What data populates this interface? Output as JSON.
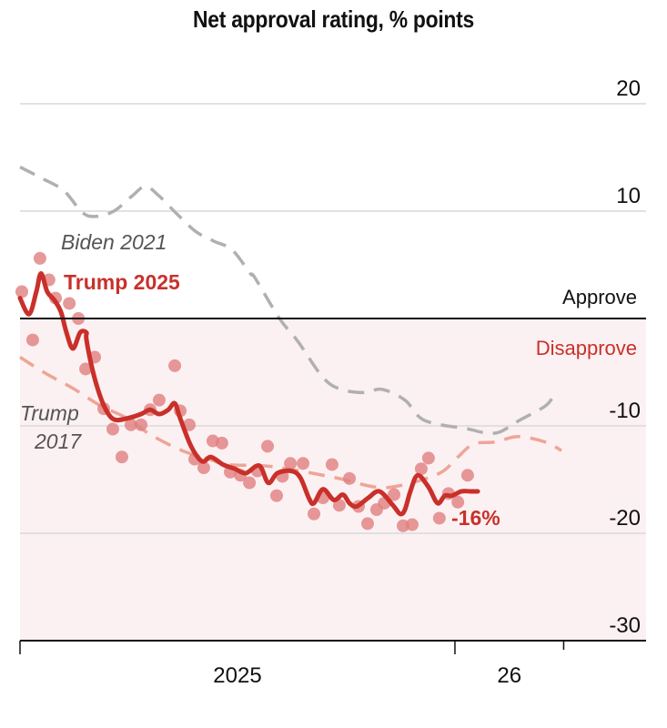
{
  "chart_data": {
    "type": "line",
    "title": "Net approval rating, % points",
    "xlabel": "",
    "ylabel": "",
    "x_unit": "months since Jan 1 2025",
    "xlim": [
      0,
      17.3
    ],
    "ylim": [
      -30,
      20
    ],
    "yticks": [
      20,
      10,
      -10,
      -20,
      -30
    ],
    "ytick_labels": [
      "20",
      "10",
      "-10",
      "-20",
      "-30"
    ],
    "xticks": [
      0,
      12,
      15
    ],
    "xtick_labels": [
      {
        "label": "2025",
        "at": 6
      },
      {
        "label": "26",
        "at": 13.5
      }
    ],
    "grid": true,
    "zero_line": true,
    "region_labels": {
      "above": "Approve",
      "below": "Disapprove"
    },
    "end_label": "-16%",
    "colors": {
      "trump2025": "#c9302a",
      "trump2025_dots": "#e08080",
      "biden2021": "#b0b0b0",
      "trump2017": "#eea597",
      "disapprove_bg": "#fcf1f2",
      "grid": "#d9d9d9"
    },
    "series": [
      {
        "name": "Trump 2025",
        "style": "solid",
        "x": [
          0,
          0.25,
          0.45,
          0.58,
          0.75,
          0.95,
          1.13,
          1.28,
          1.46,
          1.66,
          1.83,
          1.83,
          1.96,
          2.13,
          2.34,
          2.59,
          2.96,
          3.34,
          3.59,
          3.84,
          4.09,
          4.27,
          4.42,
          4.72,
          5.02,
          5.27,
          5.6,
          5.93,
          6.23,
          6.6,
          6.85,
          7.1,
          7.48,
          7.73,
          7.98,
          8.11,
          8.36,
          8.66,
          8.91,
          9.09,
          9.29,
          9.61,
          9.92,
          10.29,
          10.49,
          10.62,
          10.77,
          10.97,
          11.27,
          11.52,
          11.72,
          11.92,
          12.18,
          12.43,
          12.63
        ],
        "y": [
          1.9,
          0.4,
          2.5,
          4.2,
          2.5,
          1.7,
          0.6,
          -1.3,
          -2.8,
          -1.3,
          -1.3,
          -1.9,
          -4.2,
          -6.4,
          -8.3,
          -9.4,
          -9.3,
          -8.9,
          -8.5,
          -8.9,
          -8.5,
          -7.9,
          -9.3,
          -11.9,
          -13.3,
          -12.9,
          -13.6,
          -14.0,
          -14.4,
          -13.7,
          -15.3,
          -14.4,
          -14.2,
          -14.8,
          -16.8,
          -17.2,
          -15.9,
          -16.9,
          -16.4,
          -17.2,
          -17.5,
          -16.7,
          -16.1,
          -17.4,
          -18.2,
          -17.8,
          -16.1,
          -14.6,
          -15.7,
          -17.2,
          -16.5,
          -16.5,
          -16.1,
          -16.1,
          -16.1
        ]
      },
      {
        "name": "Biden 2021",
        "style": "dashed",
        "x": [
          0,
          0.58,
          1.21,
          1.71,
          2.08,
          2.59,
          3.09,
          3.46,
          3.84,
          4.34,
          4.85,
          5.35,
          5.85,
          6.35,
          6.48,
          7.16,
          7.66,
          8.36,
          8.86,
          9.49,
          9.99,
          10.62,
          11.17,
          12.38,
          12.76,
          13.21,
          13.77,
          14.51,
          14.76
        ],
        "y": [
          14.1,
          13.1,
          11.9,
          9.9,
          9.5,
          10.0,
          11.4,
          12.3,
          11.4,
          9.7,
          8.1,
          7.2,
          6.4,
          4.2,
          3.8,
          0,
          -2.1,
          -5.5,
          -6.6,
          -6.9,
          -6.6,
          -7.6,
          -9.5,
          -10.3,
          -10.6,
          -10.6,
          -9.5,
          -8.1,
          -6.9
        ]
      },
      {
        "name": "Trump 2017",
        "style": "dashed",
        "x": [
          0,
          0.7,
          1.46,
          2.21,
          2.96,
          3.59,
          4.47,
          5.22,
          5.72,
          6.98,
          8.66,
          9.82,
          10.57,
          11.58,
          12.05,
          12.51,
          13.11,
          13.74,
          14.49,
          14.94
        ],
        "y": [
          -3.6,
          -5.1,
          -6.5,
          -8.1,
          -9.3,
          -10.8,
          -12.3,
          -13.1,
          -13.6,
          -13.8,
          -14.8,
          -15.7,
          -15.5,
          -14.4,
          -13.0,
          -11.7,
          -11.5,
          -11.0,
          -11.5,
          -12.3
        ]
      }
    ],
    "polls": {
      "name": "Individual polls",
      "x": [
        0.05,
        0.35,
        0.55,
        0.8,
        0.98,
        1.36,
        1.61,
        1.81,
        2.06,
        2.31,
        2.56,
        2.81,
        3.06,
        3.34,
        3.59,
        3.84,
        4.27,
        4.42,
        4.67,
        4.82,
        5.07,
        5.32,
        5.57,
        5.8,
        6.08,
        6.33,
        6.55,
        6.83,
        7.08,
        7.24,
        7.46,
        7.81,
        8.11,
        8.36,
        8.61,
        8.81,
        9.09,
        9.34,
        9.59,
        9.84,
        10.05,
        10.32,
        10.57,
        10.82,
        11.07,
        11.27,
        11.57,
        11.82,
        12.08,
        12.35
      ],
      "y": [
        2.5,
        -2.0,
        5.6,
        3.6,
        1.9,
        1.4,
        0,
        -4.7,
        -3.6,
        -8.4,
        -10.3,
        -12.9,
        -9.9,
        -9.9,
        -8.5,
        -7.6,
        -4.4,
        -8.6,
        -9.9,
        -13.1,
        -13.9,
        -11.4,
        -11.6,
        -14.3,
        -14.6,
        -15.3,
        -14.2,
        -11.9,
        -16.5,
        -14.7,
        -13.5,
        -13.5,
        -18.2,
        -16.7,
        -13.6,
        -17.4,
        -14.9,
        -17.5,
        -19.1,
        -17.8,
        -17.2,
        -16.4,
        -19.3,
        -19.2,
        -14.0,
        -13.0,
        -18.6,
        -16.3,
        -17.1,
        -14.6
      ]
    },
    "annotations": [
      {
        "text": "Biden 2021",
        "series": "Biden 2021"
      },
      {
        "text": "Trump 2025",
        "series": "Trump 2025"
      },
      {
        "text": "Trump",
        "series": "Trump 2017"
      },
      {
        "text": "2017",
        "series": "Trump 2017"
      }
    ]
  }
}
